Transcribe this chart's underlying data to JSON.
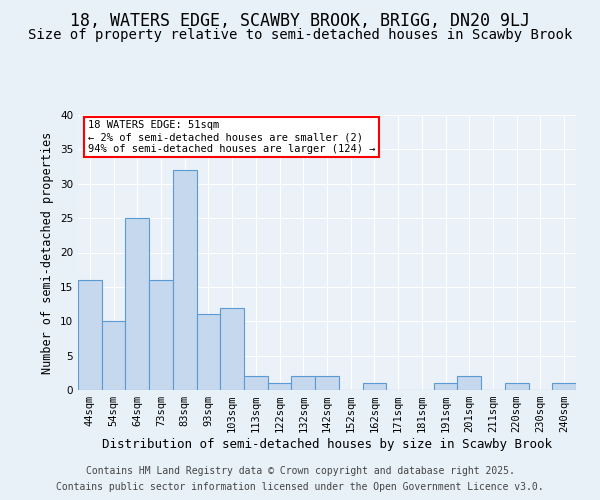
{
  "title_line1": "18, WATERS EDGE, SCAWBY BROOK, BRIGG, DN20 9LJ",
  "title_line2": "Size of property relative to semi-detached houses in Scawby Brook",
  "xlabel": "Distribution of semi-detached houses by size in Scawby Brook",
  "ylabel": "Number of semi-detached properties",
  "categories": [
    "44sqm",
    "54sqm",
    "64sqm",
    "73sqm",
    "83sqm",
    "93sqm",
    "103sqm",
    "113sqm",
    "122sqm",
    "132sqm",
    "142sqm",
    "152sqm",
    "162sqm",
    "171sqm",
    "181sqm",
    "191sqm",
    "201sqm",
    "211sqm",
    "220sqm",
    "230sqm",
    "240sqm"
  ],
  "values": [
    16,
    10,
    25,
    16,
    32,
    11,
    12,
    2,
    1,
    2,
    2,
    0,
    1,
    0,
    0,
    1,
    2,
    0,
    1,
    0,
    1
  ],
  "bar_color": "#c5d8ed",
  "bar_edge_color": "#5b9bd5",
  "annotation_text": "18 WATERS EDGE: 51sqm\n← 2% of semi-detached houses are smaller (2)\n94% of semi-detached houses are larger (124) →",
  "annotation_box_color": "white",
  "annotation_box_edge_color": "red",
  "ylim": [
    0,
    40
  ],
  "yticks": [
    0,
    5,
    10,
    15,
    20,
    25,
    30,
    35,
    40
  ],
  "background_color": "#e8f0f8",
  "plot_background_color": "#eaf1f8",
  "footer_line1": "Contains HM Land Registry data © Crown copyright and database right 2025.",
  "footer_line2": "Contains public sector information licensed under the Open Government Licence v3.0.",
  "title_fontsize": 12,
  "subtitle_fontsize": 10,
  "tick_fontsize": 7.5,
  "xlabel_fontsize": 9,
  "ylabel_fontsize": 8.5,
  "footer_fontsize": 7
}
